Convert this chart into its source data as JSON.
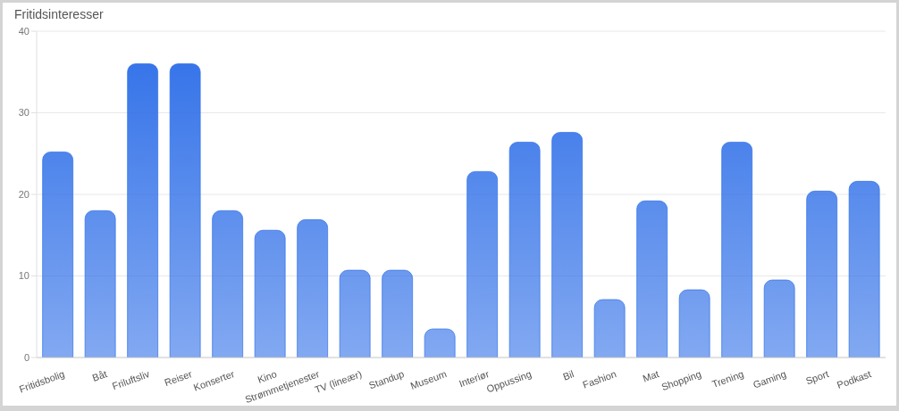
{
  "chart_data": {
    "type": "bar",
    "title": "Fritidsinteresser",
    "categories": [
      "Fritidsbolig",
      "Båt",
      "Friluftsliv",
      "Reiser",
      "Konserter",
      "Kino",
      "Strømmetjenester",
      "TV (lineær)",
      "Standup",
      "Museum",
      "Interiør",
      "Oppussing",
      "Bil",
      "Fashion",
      "Mat",
      "Shopping",
      "Trening",
      "Gaming",
      "Sport",
      "Podkast"
    ],
    "values": [
      25.2,
      18.0,
      36.0,
      36.0,
      18.0,
      15.6,
      16.9,
      10.7,
      10.7,
      3.5,
      22.8,
      26.4,
      27.6,
      7.1,
      19.2,
      8.3,
      26.4,
      9.5,
      20.4,
      21.6
    ],
    "color": "#2f6fe8",
    "ylim": [
      0,
      40
    ],
    "yticks": [
      0,
      10,
      20,
      30,
      40
    ],
    "grid": "y"
  }
}
